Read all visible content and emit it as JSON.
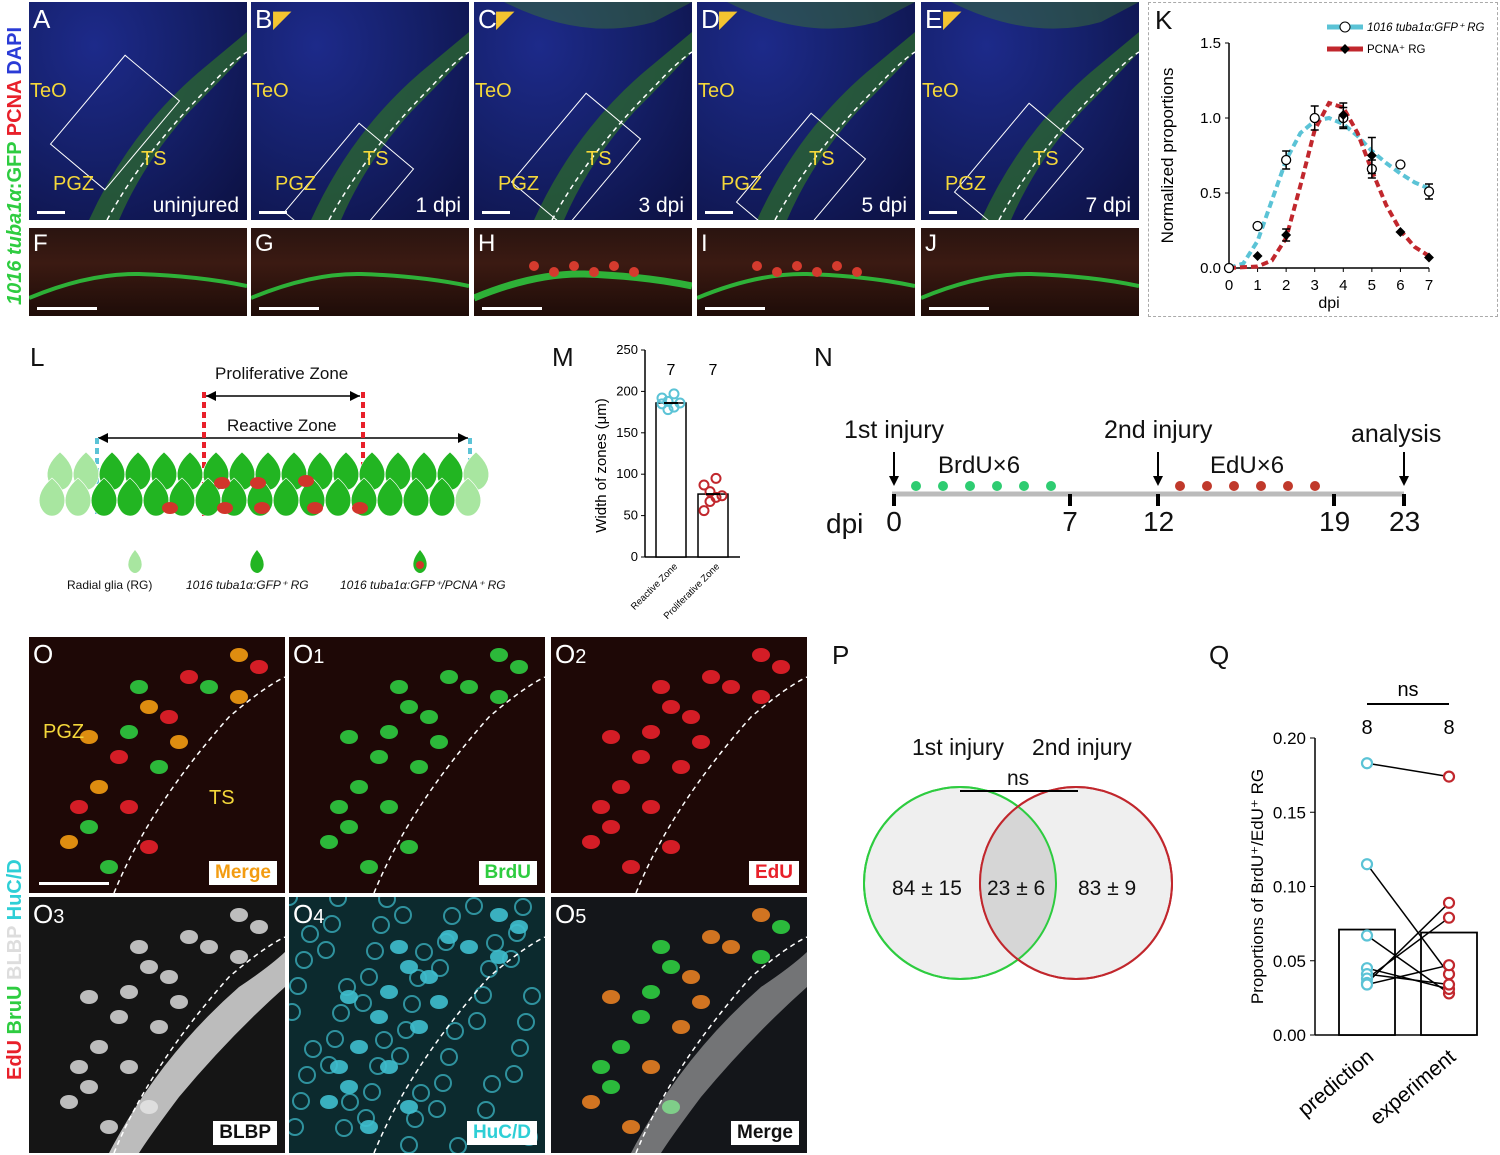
{
  "row1": {
    "side_title": {
      "part1": "1016 tuba1α",
      "part2": ":GFP",
      "part3": " PCNA",
      "part4": " DAPI"
    },
    "panels": [
      {
        "letter": "A",
        "condition": "uninjured",
        "teo": "TeO",
        "ts": "TS",
        "pgz": "PGZ"
      },
      {
        "letter": "B",
        "condition": "1 dpi",
        "teo": "TeO",
        "ts": "TS",
        "pgz": "PGZ"
      },
      {
        "letter": "C",
        "condition": "3 dpi",
        "teo": "TeO",
        "ts": "TS",
        "pgz": "PGZ"
      },
      {
        "letter": "D",
        "condition": "5 dpi",
        "teo": "TeO",
        "ts": "TS",
        "pgz": "PGZ"
      },
      {
        "letter": "E",
        "condition": "7 dpi",
        "teo": "TeO",
        "ts": "TS",
        "pgz": "PGZ"
      }
    ],
    "strips": [
      "F",
      "G",
      "H",
      "I",
      "J"
    ]
  },
  "panel_K": {
    "letter": "K",
    "legend": [
      {
        "label": "1016 tuba1α:GFP⁺ RG",
        "color": "#5bc3d6"
      },
      {
        "label": "PCNA⁺ RG",
        "color": "#c1272d"
      }
    ]
  },
  "panel_L": {
    "letter": "L",
    "proliferative_zone": "Proliferative Zone",
    "reactive_zone": "Reactive Zone",
    "legend": [
      "Radial glia (RG)",
      "1016 tuba1α:GFP⁺ RG",
      "1016 tuba1α:GFP⁺/PCNA⁺ RG"
    ]
  },
  "panel_M": {
    "letter": "M"
  },
  "panel_N": {
    "letter": "N",
    "first_injury": "1st injury",
    "second_injury": "2nd injury",
    "analysis": "analysis",
    "brdu": "BrdU×6",
    "edu": "EdU×6",
    "dpi_label": "dpi",
    "ticks": [
      "0",
      "7",
      "12",
      "19",
      "23"
    ]
  },
  "row3": {
    "side_title": {
      "edu": "EdU",
      "bru": " BruU",
      "blbp": " BLBP",
      "huc": " HuC/D"
    },
    "panels": [
      {
        "letter": "O",
        "tag": "Merge",
        "pgz": "PGZ",
        "ts": "TS"
      },
      {
        "letter": "O1",
        "tag": "BrdU"
      },
      {
        "letter": "O2",
        "tag": "EdU"
      },
      {
        "letter": "O3",
        "tag": "BLBP"
      },
      {
        "letter": "O4",
        "tag": "HuC/D"
      },
      {
        "letter": "O5",
        "tag": "Merge"
      }
    ]
  },
  "panel_P": {
    "letter": "P",
    "first_injury": "1st injury",
    "second_injury": "2nd injury",
    "ns": "ns",
    "left": "84 ± 15",
    "overlap": "23 ± 6",
    "right": "83 ± 9"
  },
  "panel_Q": {
    "letter": "Q"
  },
  "colors": {
    "cyan": "#5bc3d6",
    "red": "#c1272d",
    "green": "#2ecc40",
    "edu_red": "#c0392b"
  },
  "chart_data": [
    {
      "type": "line",
      "panel": "K",
      "xlabel": "dpi",
      "ylabel": "Normalized proportions",
      "xlim": [
        0,
        7
      ],
      "ylim": [
        0,
        1.5
      ],
      "xticks": [
        "0",
        "1",
        "2",
        "3",
        "4",
        "5",
        "6",
        "7"
      ],
      "yticks": [
        "0.0",
        "0.5",
        "1.0",
        "1.5"
      ],
      "legend_position": "top-right",
      "series": [
        {
          "name": "1016 tuba1α:GFP⁺ RG",
          "x": [
            0,
            1,
            2,
            3,
            4,
            5,
            6,
            7
          ],
          "y": [
            0.0,
            0.28,
            0.72,
            1.0,
            1.0,
            0.66,
            0.69,
            0.51
          ],
          "err": [
            0,
            0,
            0.06,
            0.08,
            0.07,
            0.06,
            0,
            0.05
          ],
          "fit_x": [
            0,
            0.5,
            1,
            1.5,
            2,
            2.5,
            3,
            3.5,
            4,
            4.5,
            5,
            5.5,
            6,
            6.5,
            7
          ],
          "fit_y": [
            0.0,
            0.03,
            0.18,
            0.45,
            0.72,
            0.9,
            0.98,
            1.0,
            0.96,
            0.88,
            0.78,
            0.7,
            0.63,
            0.57,
            0.53
          ]
        },
        {
          "name": "PCNA⁺ RG",
          "x": [
            1,
            2,
            4,
            5,
            6,
            7
          ],
          "y": [
            0.08,
            0.22,
            1.02,
            0.75,
            0.24,
            0.07
          ],
          "err": [
            0,
            0.04,
            0.08,
            0.12,
            0,
            0
          ],
          "fit_x": [
            0,
            1,
            1.5,
            2,
            2.5,
            3,
            3.5,
            4,
            4.5,
            5,
            5.5,
            6,
            6.5,
            7
          ],
          "fit_y": [
            0.0,
            0.01,
            0.05,
            0.2,
            0.55,
            0.92,
            1.1,
            1.07,
            0.9,
            0.65,
            0.42,
            0.25,
            0.14,
            0.08
          ]
        }
      ]
    },
    {
      "type": "bar",
      "panel": "M",
      "ylabel": "Width of zones (μm)",
      "ylim": [
        0,
        250
      ],
      "yticks": [
        "0",
        "50",
        "100",
        "150",
        "200",
        "250"
      ],
      "categories": [
        "Reactive Zone",
        "Proliferative Zone"
      ],
      "values": [
        186,
        76
      ],
      "n_labels": [
        "7",
        "7"
      ],
      "points": [
        [
          192,
          188,
          181,
          186,
          185,
          178,
          197
        ],
        [
          87,
          67,
          95,
          74,
          56,
          79,
          72
        ]
      ],
      "colors": [
        "#5bc3d6",
        "#c1272d"
      ]
    },
    {
      "type": "bar",
      "panel": "Q",
      "ylabel": "Proportions of BrdU⁺/EdU⁺ RG",
      "ylim": [
        0,
        0.2
      ],
      "yticks": [
        "0.00",
        "0.05",
        "0.10",
        "0.15",
        "0.20"
      ],
      "categories": [
        "prediction",
        "experiment"
      ],
      "values": [
        0.071,
        0.069
      ],
      "n_labels": [
        "8",
        "8"
      ],
      "ns": "ns",
      "pairs": [
        [
          0.183,
          0.174
        ],
        [
          0.115,
          0.041
        ],
        [
          0.067,
          0.028
        ],
        [
          0.045,
          0.031
        ],
        [
          0.041,
          0.034
        ],
        [
          0.038,
          0.079
        ],
        [
          0.035,
          0.089
        ],
        [
          0.034,
          0.047
        ]
      ]
    }
  ]
}
